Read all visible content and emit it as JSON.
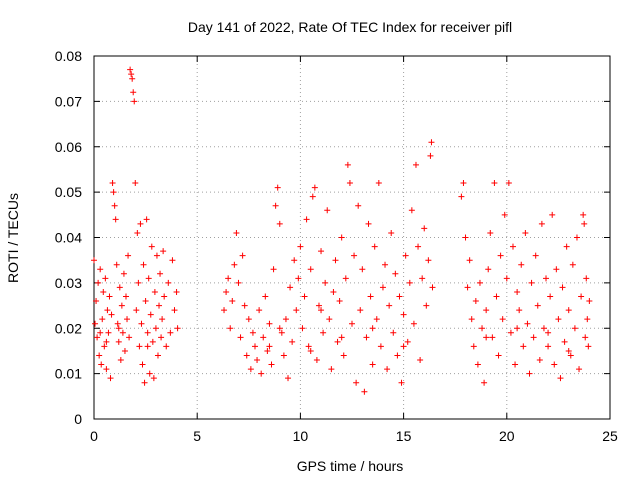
{
  "chart_data": {
    "type": "scatter",
    "title": "Day 141 of 2022, Rate Of TEC Index for receiver pifl",
    "xlabel": "GPS time / hours",
    "ylabel": "ROTI / TECUs",
    "xlim": [
      0,
      25
    ],
    "ylim": [
      0,
      0.08
    ],
    "xticks": [
      0,
      5,
      10,
      15,
      20,
      25
    ],
    "yticks": [
      0,
      0.01,
      0.02,
      0.03,
      0.04,
      0.05,
      0.06,
      0.07,
      0.08
    ],
    "xtick_labels": [
      "0",
      "5",
      "10",
      "15",
      "20",
      "25"
    ],
    "ytick_labels": [
      "0",
      "0.01",
      "0.02",
      "0.03",
      "0.04",
      "0.05",
      "0.06",
      "0.07",
      "0.08"
    ],
    "grid": true,
    "marker": "+",
    "color": "#ff0000",
    "series": [
      {
        "points": [
          [
            0.0,
            0.035
          ],
          [
            0.05,
            0.021
          ],
          [
            0.1,
            0.026
          ],
          [
            0.15,
            0.018
          ],
          [
            0.2,
            0.03
          ],
          [
            0.25,
            0.014
          ],
          [
            0.3,
            0.033
          ],
          [
            0.35,
            0.012
          ],
          [
            0.4,
            0.022
          ],
          [
            0.45,
            0.028
          ],
          [
            0.5,
            0.016
          ],
          [
            0.55,
            0.031
          ],
          [
            0.6,
            0.011
          ],
          [
            0.65,
            0.024
          ],
          [
            0.7,
            0.019
          ],
          [
            0.75,
            0.027
          ],
          [
            0.8,
            0.009
          ],
          [
            0.85,
            0.023
          ],
          [
            0.9,
            0.052
          ],
          [
            0.95,
            0.05
          ],
          [
            1.0,
            0.047
          ],
          [
            1.05,
            0.044
          ],
          [
            1.1,
            0.034
          ],
          [
            1.15,
            0.021
          ],
          [
            1.2,
            0.017
          ],
          [
            1.25,
            0.029
          ],
          [
            1.3,
            0.013
          ],
          [
            1.35,
            0.025
          ],
          [
            1.4,
            0.019
          ],
          [
            1.45,
            0.032
          ],
          [
            1.5,
            0.015
          ],
          [
            1.55,
            0.027
          ],
          [
            1.6,
            0.022
          ],
          [
            1.65,
            0.036
          ],
          [
            1.7,
            0.018
          ],
          [
            1.75,
            0.077
          ],
          [
            1.8,
            0.076
          ],
          [
            1.85,
            0.075
          ],
          [
            1.9,
            0.072
          ],
          [
            1.95,
            0.07
          ],
          [
            2.0,
            0.052
          ],
          [
            2.05,
            0.024
          ],
          [
            2.1,
            0.041
          ],
          [
            2.15,
            0.03
          ],
          [
            2.2,
            0.016
          ],
          [
            2.25,
            0.043
          ],
          [
            2.3,
            0.021
          ],
          [
            2.35,
            0.012
          ],
          [
            2.4,
            0.034
          ],
          [
            2.45,
            0.008
          ],
          [
            2.5,
            0.026
          ],
          [
            2.55,
            0.044
          ],
          [
            2.6,
            0.019
          ],
          [
            2.65,
            0.031
          ],
          [
            2.7,
            0.01
          ],
          [
            2.75,
            0.023
          ],
          [
            2.8,
            0.038
          ],
          [
            2.85,
            0.017
          ],
          [
            2.9,
            0.009
          ],
          [
            2.95,
            0.028
          ],
          [
            3.0,
            0.02
          ],
          [
            3.05,
            0.036
          ],
          [
            3.1,
            0.014
          ],
          [
            3.15,
            0.025
          ],
          [
            3.2,
            0.032
          ],
          [
            3.25,
            0.018
          ],
          [
            3.3,
            0.022
          ],
          [
            3.35,
            0.037
          ],
          [
            3.4,
            0.027
          ],
          [
            3.5,
            0.016
          ],
          [
            3.6,
            0.03
          ],
          [
            3.7,
            0.019
          ],
          [
            3.8,
            0.035
          ],
          [
            3.9,
            0.024
          ],
          [
            4.0,
            0.028
          ],
          [
            4.05,
            0.02
          ],
          [
            0.3,
            0.019
          ],
          [
            0.6,
            0.017
          ],
          [
            1.2,
            0.02
          ],
          [
            2.6,
            0.016
          ],
          [
            6.3,
            0.024
          ],
          [
            6.4,
            0.028
          ],
          [
            6.5,
            0.031
          ],
          [
            6.6,
            0.02
          ],
          [
            6.7,
            0.026
          ],
          [
            6.8,
            0.034
          ],
          [
            6.9,
            0.041
          ],
          [
            7.0,
            0.03
          ],
          [
            7.1,
            0.018
          ],
          [
            7.2,
            0.036
          ],
          [
            7.3,
            0.025
          ],
          [
            7.4,
            0.014
          ],
          [
            7.5,
            0.022
          ],
          [
            7.6,
            0.011
          ],
          [
            7.7,
            0.019
          ],
          [
            7.8,
            0.016
          ],
          [
            7.9,
            0.013
          ],
          [
            8.0,
            0.024
          ],
          [
            8.1,
            0.01
          ],
          [
            8.2,
            0.018
          ],
          [
            8.3,
            0.027
          ],
          [
            8.4,
            0.015
          ],
          [
            8.5,
            0.021
          ],
          [
            8.6,
            0.012
          ],
          [
            8.7,
            0.033
          ],
          [
            8.8,
            0.047
          ],
          [
            8.9,
            0.051
          ],
          [
            9.0,
            0.043
          ],
          [
            9.1,
            0.019
          ],
          [
            9.2,
            0.014
          ],
          [
            9.3,
            0.022
          ],
          [
            9.4,
            0.009
          ],
          [
            9.5,
            0.029
          ],
          [
            9.6,
            0.017
          ],
          [
            9.7,
            0.035
          ],
          [
            9.8,
            0.024
          ],
          [
            9.9,
            0.031
          ],
          [
            10.0,
            0.038
          ],
          [
            10.1,
            0.02
          ],
          [
            10.2,
            0.027
          ],
          [
            10.3,
            0.044
          ],
          [
            10.4,
            0.016
          ],
          [
            10.5,
            0.033
          ],
          [
            10.6,
            0.049
          ],
          [
            10.7,
            0.051
          ],
          [
            10.8,
            0.013
          ],
          [
            10.9,
            0.025
          ],
          [
            11.0,
            0.037
          ],
          [
            11.1,
            0.019
          ],
          [
            11.2,
            0.03
          ],
          [
            11.3,
            0.046
          ],
          [
            11.4,
            0.022
          ],
          [
            11.5,
            0.011
          ],
          [
            11.6,
            0.028
          ],
          [
            11.7,
            0.035
          ],
          [
            11.8,
            0.017
          ],
          [
            11.9,
            0.026
          ],
          [
            12.0,
            0.04
          ],
          [
            12.1,
            0.014
          ],
          [
            12.2,
            0.031
          ],
          [
            12.3,
            0.056
          ],
          [
            12.4,
            0.052
          ],
          [
            12.5,
            0.021
          ],
          [
            12.6,
            0.036
          ],
          [
            12.7,
            0.008
          ],
          [
            12.8,
            0.047
          ],
          [
            12.9,
            0.024
          ],
          [
            13.0,
            0.033
          ],
          [
            13.1,
            0.006
          ],
          [
            13.2,
            0.018
          ],
          [
            13.3,
            0.043
          ],
          [
            13.4,
            0.027
          ],
          [
            13.5,
            0.012
          ],
          [
            13.6,
            0.038
          ],
          [
            13.7,
            0.022
          ],
          [
            13.8,
            0.052
          ],
          [
            13.9,
            0.016
          ],
          [
            14.0,
            0.029
          ],
          [
            14.1,
            0.034
          ],
          [
            14.2,
            0.011
          ],
          [
            14.3,
            0.025
          ],
          [
            14.4,
            0.041
          ],
          [
            14.5,
            0.019
          ],
          [
            14.6,
            0.032
          ],
          [
            14.7,
            0.014
          ],
          [
            14.8,
            0.027
          ],
          [
            14.9,
            0.008
          ],
          [
            15.0,
            0.023
          ],
          [
            15.1,
            0.036
          ],
          [
            15.2,
            0.017
          ],
          [
            15.3,
            0.03
          ],
          [
            15.4,
            0.046
          ],
          [
            15.5,
            0.021
          ],
          [
            15.6,
            0.056
          ],
          [
            15.7,
            0.038
          ],
          [
            15.8,
            0.013
          ],
          [
            15.9,
            0.031
          ],
          [
            16.0,
            0.042
          ],
          [
            16.1,
            0.025
          ],
          [
            16.2,
            0.035
          ],
          [
            16.3,
            0.058
          ],
          [
            16.35,
            0.061
          ],
          [
            16.4,
            0.029
          ],
          [
            9.0,
            0.02
          ],
          [
            10.5,
            0.015
          ],
          [
            12.0,
            0.018
          ],
          [
            13.5,
            0.02
          ],
          [
            15.0,
            0.016
          ],
          [
            11.0,
            0.024
          ],
          [
            8.5,
            0.016
          ],
          [
            17.8,
            0.049
          ],
          [
            17.9,
            0.052
          ],
          [
            18.0,
            0.04
          ],
          [
            18.1,
            0.029
          ],
          [
            18.2,
            0.035
          ],
          [
            18.3,
            0.022
          ],
          [
            18.4,
            0.016
          ],
          [
            18.5,
            0.026
          ],
          [
            18.6,
            0.012
          ],
          [
            18.7,
            0.03
          ],
          [
            18.8,
            0.02
          ],
          [
            18.9,
            0.008
          ],
          [
            19.0,
            0.024
          ],
          [
            19.1,
            0.033
          ],
          [
            19.2,
            0.041
          ],
          [
            19.3,
            0.018
          ],
          [
            19.4,
            0.052
          ],
          [
            19.5,
            0.027
          ],
          [
            19.6,
            0.014
          ],
          [
            19.7,
            0.036
          ],
          [
            19.8,
            0.022
          ],
          [
            19.9,
            0.045
          ],
          [
            20.0,
            0.031
          ],
          [
            20.1,
            0.052
          ],
          [
            20.2,
            0.019
          ],
          [
            20.3,
            0.038
          ],
          [
            20.4,
            0.012
          ],
          [
            20.5,
            0.028
          ],
          [
            20.6,
            0.024
          ],
          [
            20.7,
            0.034
          ],
          [
            20.8,
            0.016
          ],
          [
            20.9,
            0.041
          ],
          [
            21.0,
            0.021
          ],
          [
            21.1,
            0.01
          ],
          [
            21.2,
            0.03
          ],
          [
            21.3,
            0.018
          ],
          [
            21.4,
            0.036
          ],
          [
            21.5,
            0.025
          ],
          [
            21.6,
            0.013
          ],
          [
            21.7,
            0.043
          ],
          [
            21.8,
            0.02
          ],
          [
            21.9,
            0.031
          ],
          [
            22.0,
            0.016
          ],
          [
            22.1,
            0.027
          ],
          [
            22.2,
            0.045
          ],
          [
            22.3,
            0.012
          ],
          [
            22.4,
            0.033
          ],
          [
            22.5,
            0.022
          ],
          [
            22.6,
            0.009
          ],
          [
            22.7,
            0.029
          ],
          [
            22.8,
            0.017
          ],
          [
            22.9,
            0.038
          ],
          [
            23.0,
            0.024
          ],
          [
            23.1,
            0.014
          ],
          [
            23.2,
            0.034
          ],
          [
            23.3,
            0.02
          ],
          [
            23.4,
            0.04
          ],
          [
            23.5,
            0.011
          ],
          [
            23.6,
            0.027
          ],
          [
            23.7,
            0.045
          ],
          [
            23.75,
            0.043
          ],
          [
            23.8,
            0.018
          ],
          [
            23.85,
            0.031
          ],
          [
            23.9,
            0.022
          ],
          [
            23.95,
            0.016
          ],
          [
            24.0,
            0.026
          ],
          [
            19.0,
            0.018
          ],
          [
            20.5,
            0.02
          ],
          [
            22.0,
            0.019
          ],
          [
            23.0,
            0.015
          ]
        ]
      }
    ]
  }
}
